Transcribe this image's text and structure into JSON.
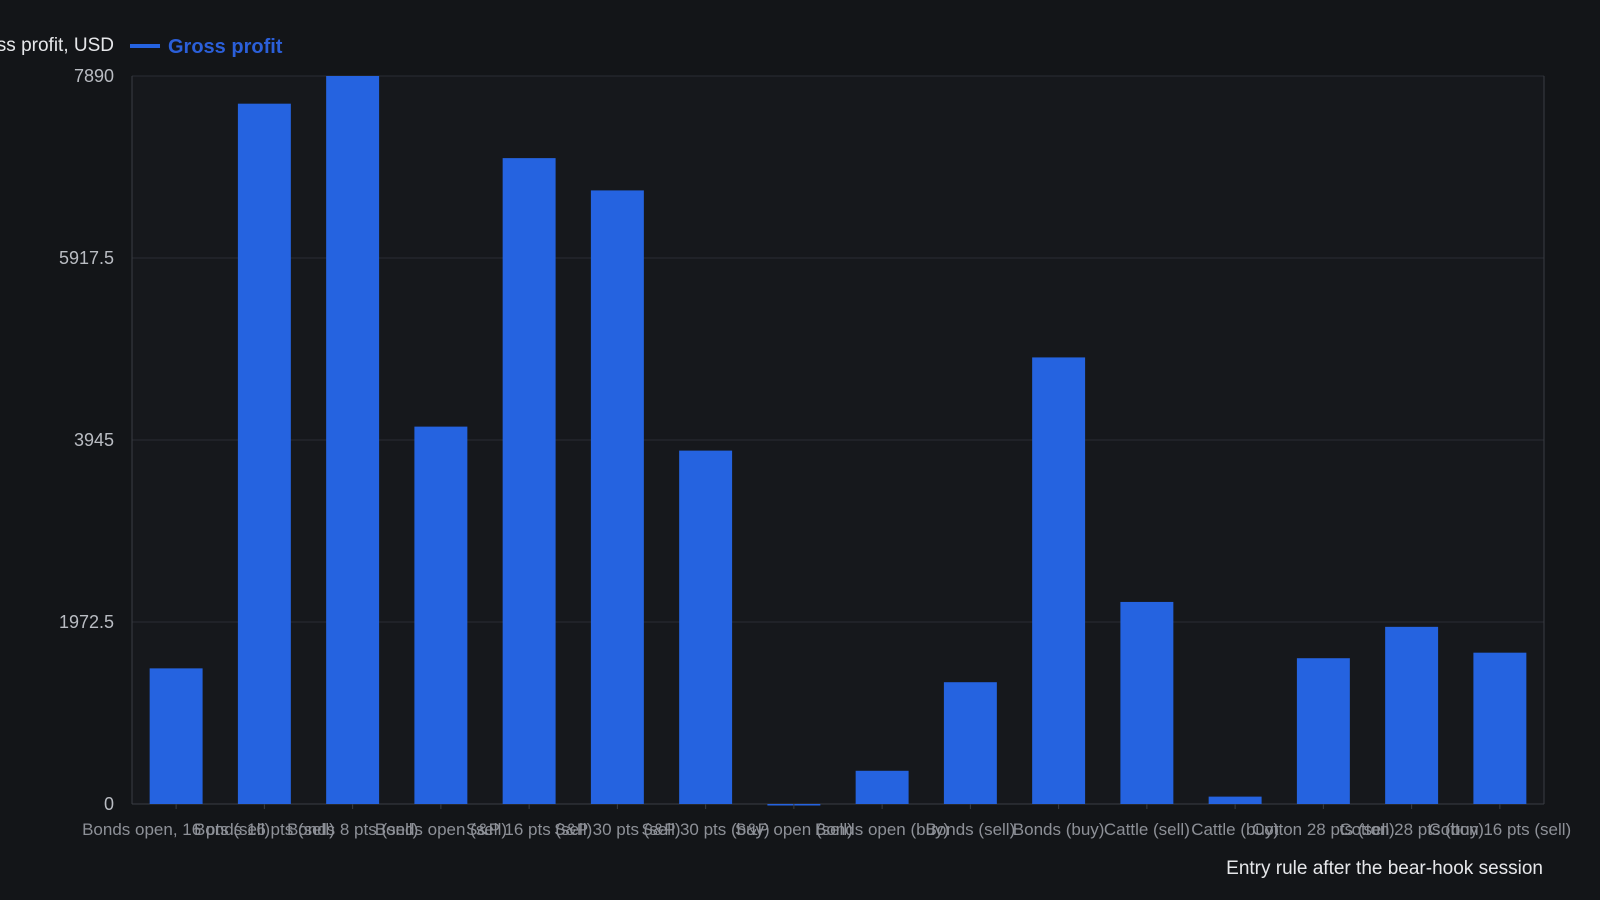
{
  "chart_data": {
    "type": "bar",
    "ylabel": "Gross profit, USD",
    "xlabel": "Entry rule after the bear-hook session",
    "ylim": [
      0,
      7890
    ],
    "yticks": [
      0,
      1972.5,
      3945,
      5917.5,
      7890
    ],
    "ytick_labels": [
      "0",
      "1972.5",
      "3945",
      "5917.5",
      "7890"
    ],
    "grid": true,
    "legend": {
      "position": "top-left",
      "entries": [
        "Gross profit"
      ]
    },
    "colors": {
      "bar": "#2563e0",
      "legend_text": "#2b5fd9",
      "background": "#131518"
    },
    "categories": [
      "Bonds open, 16 pts (sell)",
      "Bonds 16 pts (sell)",
      "Bonds 8 pts (sell)",
      "Bonds open (sell)",
      "S&P 16 pts (sell)",
      "S&P 30 pts (sell)",
      "S&P 30 pts (buy)",
      "S&P open (sell)",
      "Bonds open (buy)",
      "Bonds (sell)",
      "Bonds (buy)",
      "Cattle (sell)",
      "Cattle (buy)",
      "Cotton 28 pts (sell)",
      "Cotton 28 pts (buy)",
      "Cotton 16 pts (sell)"
    ],
    "series": [
      {
        "name": "Gross profit",
        "values": [
          1470,
          7590,
          7890,
          4090,
          7000,
          6650,
          3830,
          -15,
          360,
          1320,
          4840,
          2190,
          80,
          1580,
          1920,
          1640
        ]
      }
    ]
  }
}
